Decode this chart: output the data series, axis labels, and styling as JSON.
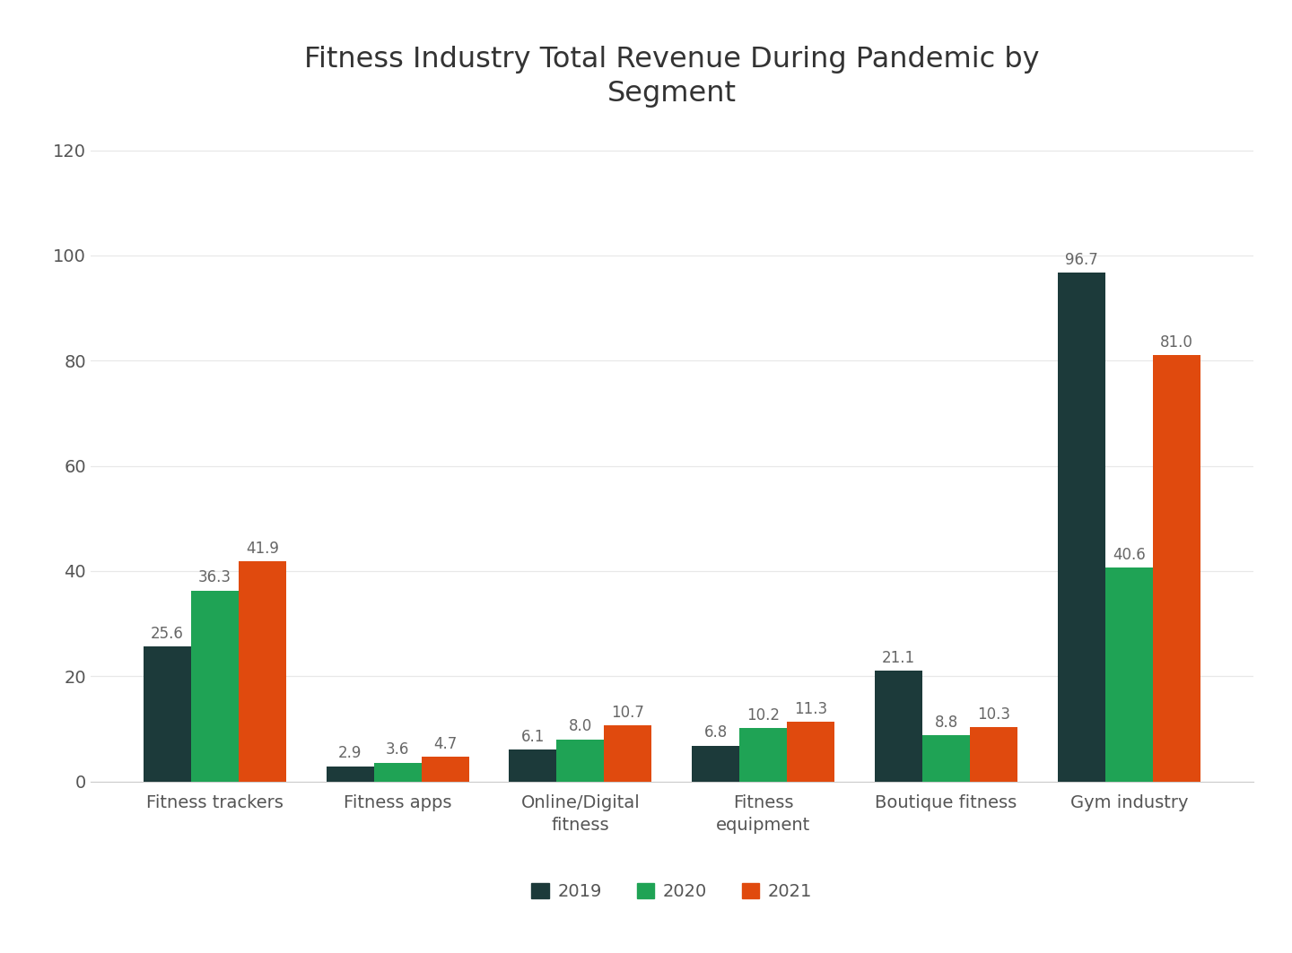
{
  "title": "Fitness Industry Total Revenue During Pandemic by\nSegment",
  "categories": [
    "Fitness trackers",
    "Fitness apps",
    "Online/Digital\nfitness",
    "Fitness\nequipment",
    "Boutique fitness",
    "Gym industry"
  ],
  "series": {
    "2019": [
      25.6,
      2.9,
      6.1,
      6.8,
      21.1,
      96.7
    ],
    "2020": [
      36.3,
      3.6,
      8.0,
      10.2,
      8.8,
      40.6
    ],
    "2021": [
      41.9,
      4.7,
      10.7,
      11.3,
      10.3,
      81.0
    ]
  },
  "colors": {
    "2019": "#1c3a3a",
    "2020": "#1fa355",
    "2021": "#e04a0e"
  },
  "ylim": [
    0,
    125
  ],
  "yticks": [
    0,
    20,
    40,
    60,
    80,
    100,
    120
  ],
  "background_color": "#ffffff",
  "title_fontsize": 23,
  "tick_fontsize": 14,
  "bar_label_fontsize": 12,
  "legend_fontsize": 14,
  "bar_width": 0.26,
  "grid_color": "#e8e8e8",
  "text_color": "#555555",
  "label_color": "#666666"
}
